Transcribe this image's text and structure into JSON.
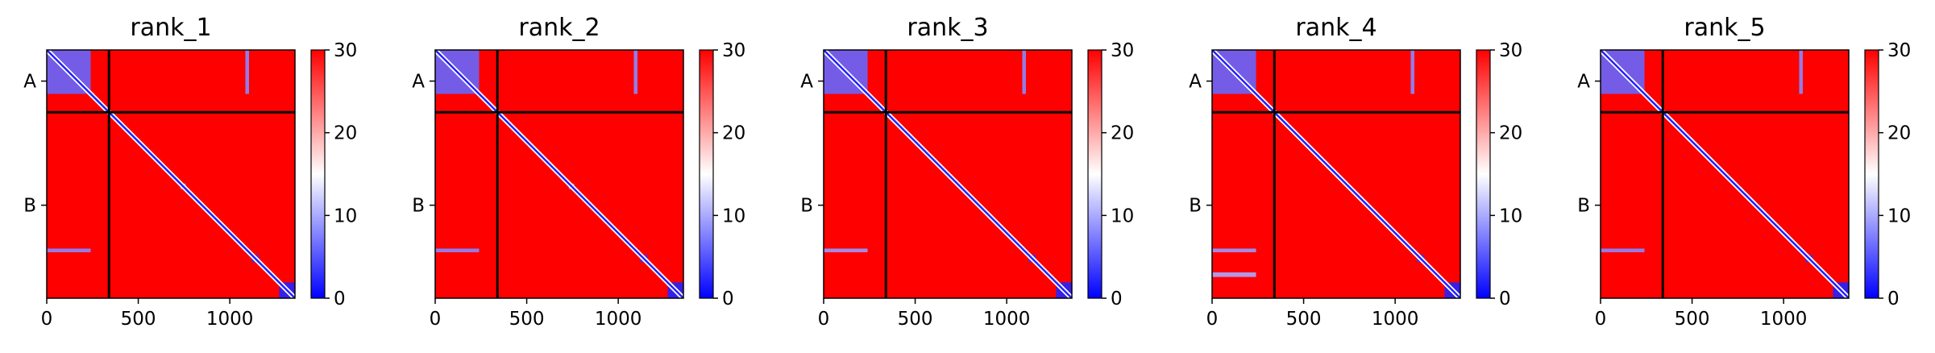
{
  "chart_data": [
    {
      "type": "heatmap",
      "title": "rank_1",
      "xlim": [
        0,
        1356
      ],
      "ylim": [
        1356,
        0
      ],
      "xticks": [
        0,
        500,
        1000
      ],
      "chain_labels": [
        "A",
        "B"
      ],
      "chain_boundary": 340,
      "colorbar": {
        "min": 0,
        "max": 30,
        "ticks": [
          0,
          10,
          20,
          30
        ],
        "colormap": "bwr"
      },
      "background_value": 30,
      "diagonal_value": 2,
      "low_blocks": [
        {
          "x": [
            0,
            240
          ],
          "y": [
            0,
            240
          ],
          "value": 6
        },
        {
          "x": [
            1085,
            1105
          ],
          "y": [
            0,
            240
          ],
          "value": 8
        },
        {
          "x": [
            0,
            240
          ],
          "y": [
            1085,
            1105
          ],
          "value": 8
        },
        {
          "x": [
            1085,
            1110
          ],
          "y": [
            1085,
            1110
          ],
          "value": 2
        },
        {
          "x": [
            1120,
            1160
          ],
          "y": [
            1120,
            1160
          ],
          "value": 3
        },
        {
          "x": [
            1270,
            1356
          ],
          "y": [
            1270,
            1356
          ],
          "value": 2
        },
        {
          "x": [
            730,
            760
          ],
          "y": [
            730,
            760
          ],
          "value": 8
        }
      ]
    },
    {
      "type": "heatmap",
      "title": "rank_2",
      "xlim": [
        0,
        1356
      ],
      "ylim": [
        1356,
        0
      ],
      "xticks": [
        0,
        500,
        1000
      ],
      "chain_labels": [
        "A",
        "B"
      ],
      "chain_boundary": 340,
      "colorbar": {
        "min": 0,
        "max": 30,
        "ticks": [
          0,
          10,
          20,
          30
        ],
        "colormap": "bwr"
      },
      "background_value": 30,
      "diagonal_value": 2,
      "low_blocks": [
        {
          "x": [
            0,
            240
          ],
          "y": [
            0,
            240
          ],
          "value": 6
        },
        {
          "x": [
            1085,
            1105
          ],
          "y": [
            0,
            240
          ],
          "value": 8
        },
        {
          "x": [
            0,
            240
          ],
          "y": [
            1085,
            1105
          ],
          "value": 8
        },
        {
          "x": [
            1085,
            1110
          ],
          "y": [
            1085,
            1110
          ],
          "value": 2
        },
        {
          "x": [
            1120,
            1160
          ],
          "y": [
            1120,
            1160
          ],
          "value": 3
        },
        {
          "x": [
            1270,
            1356
          ],
          "y": [
            1270,
            1356
          ],
          "value": 2
        },
        {
          "x": [
            730,
            760
          ],
          "y": [
            730,
            760
          ],
          "value": 8
        }
      ]
    },
    {
      "type": "heatmap",
      "title": "rank_3",
      "xlim": [
        0,
        1356
      ],
      "ylim": [
        1356,
        0
      ],
      "xticks": [
        0,
        500,
        1000
      ],
      "chain_labels": [
        "A",
        "B"
      ],
      "chain_boundary": 340,
      "colorbar": {
        "min": 0,
        "max": 30,
        "ticks": [
          0,
          10,
          20,
          30
        ],
        "colormap": "bwr"
      },
      "background_value": 30,
      "diagonal_value": 2,
      "low_blocks": [
        {
          "x": [
            0,
            240
          ],
          "y": [
            0,
            240
          ],
          "value": 6
        },
        {
          "x": [
            1085,
            1105
          ],
          "y": [
            0,
            240
          ],
          "value": 8
        },
        {
          "x": [
            0,
            240
          ],
          "y": [
            1085,
            1105
          ],
          "value": 9
        },
        {
          "x": [
            1085,
            1110
          ],
          "y": [
            1085,
            1110
          ],
          "value": 2
        },
        {
          "x": [
            1120,
            1160
          ],
          "y": [
            1120,
            1160
          ],
          "value": 3
        },
        {
          "x": [
            1270,
            1356
          ],
          "y": [
            1270,
            1356
          ],
          "value": 2
        }
      ]
    },
    {
      "type": "heatmap",
      "title": "rank_4",
      "xlim": [
        0,
        1356
      ],
      "ylim": [
        1356,
        0
      ],
      "xticks": [
        0,
        500,
        1000
      ],
      "chain_labels": [
        "A",
        "B"
      ],
      "chain_boundary": 340,
      "colorbar": {
        "min": 0,
        "max": 30,
        "ticks": [
          0,
          10,
          20,
          30
        ],
        "colormap": "bwr"
      },
      "background_value": 30,
      "diagonal_value": 2,
      "low_blocks": [
        {
          "x": [
            0,
            240
          ],
          "y": [
            0,
            240
          ],
          "value": 6
        },
        {
          "x": [
            1085,
            1105
          ],
          "y": [
            0,
            240
          ],
          "value": 8
        },
        {
          "x": [
            0,
            240
          ],
          "y": [
            1085,
            1105
          ],
          "value": 9
        },
        {
          "x": [
            0,
            240
          ],
          "y": [
            1215,
            1240
          ],
          "value": 10
        },
        {
          "x": [
            1085,
            1110
          ],
          "y": [
            1085,
            1110
          ],
          "value": 2
        },
        {
          "x": [
            1120,
            1160
          ],
          "y": [
            1120,
            1160
          ],
          "value": 3
        },
        {
          "x": [
            1270,
            1356
          ],
          "y": [
            1270,
            1356
          ],
          "value": 2
        }
      ]
    },
    {
      "type": "heatmap",
      "title": "rank_5",
      "xlim": [
        0,
        1356
      ],
      "ylim": [
        1356,
        0
      ],
      "xticks": [
        0,
        500,
        1000
      ],
      "chain_labels": [
        "A",
        "B"
      ],
      "chain_boundary": 340,
      "colorbar": {
        "min": 0,
        "max": 30,
        "ticks": [
          0,
          10,
          20,
          30
        ],
        "colormap": "bwr"
      },
      "background_value": 30,
      "diagonal_value": 2,
      "low_blocks": [
        {
          "x": [
            0,
            240
          ],
          "y": [
            0,
            240
          ],
          "value": 6
        },
        {
          "x": [
            1085,
            1105
          ],
          "y": [
            0,
            240
          ],
          "value": 8
        },
        {
          "x": [
            0,
            240
          ],
          "y": [
            1085,
            1105
          ],
          "value": 8
        },
        {
          "x": [
            1085,
            1110
          ],
          "y": [
            1085,
            1110
          ],
          "value": 2
        },
        {
          "x": [
            1120,
            1160
          ],
          "y": [
            1120,
            1160
          ],
          "value": 3
        },
        {
          "x": [
            1270,
            1356
          ],
          "y": [
            1270,
            1356
          ],
          "value": 2
        }
      ]
    }
  ]
}
